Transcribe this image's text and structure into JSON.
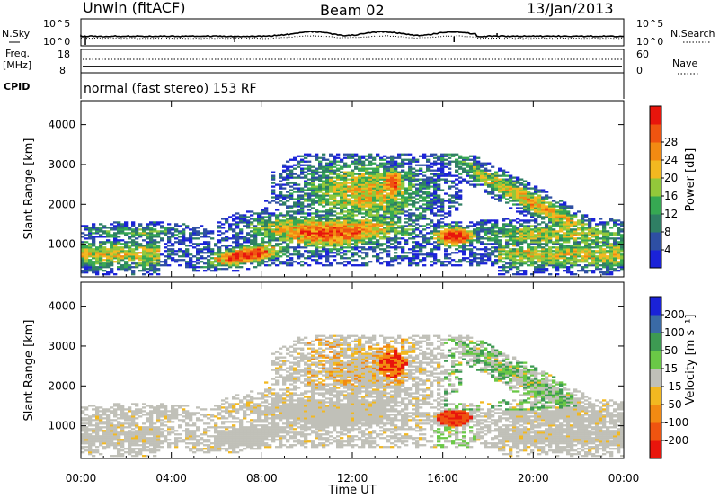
{
  "header": {
    "radar": "Unwin (fitACF)",
    "beam": "Beam 02",
    "date": "13/Jan/2013"
  },
  "noise_panel": {
    "left_label": "N.Sky",
    "left_ticks": [
      "10^5",
      "10^0"
    ],
    "right_label": "N.Search",
    "right_ticks": [
      "10^5",
      "10^0"
    ]
  },
  "freq_panel": {
    "left_label_1": "Freq.",
    "left_label_2": "[MHz]",
    "left_ticks": [
      "18",
      "8"
    ],
    "right_label": "Nave",
    "right_ticks": [
      "60",
      "0"
    ],
    "cpid_label": "CPID",
    "cpid_text": "normal (fast stereo) 153 RF"
  },
  "colors": {
    "power_scale": [
      "#1a22d8",
      "#2e4fa3",
      "#2f7f64",
      "#36a852",
      "#93c83a",
      "#f2b820",
      "#f28a12",
      "#ef5410",
      "#e8150c"
    ],
    "velocity_scale": [
      "#e8150c",
      "#ef5410",
      "#f28a12",
      "#f2b820",
      "#c0c0b8",
      "#6ac846",
      "#3d9a52",
      "#3a6aa6",
      "#1a22d8"
    ]
  },
  "chart_data": [
    {
      "type": "heatmap",
      "name": "power",
      "ylabel": "Slant Range [km]",
      "xlabel": "",
      "x_ticks": [
        "00:00",
        "04:00",
        "08:00",
        "12:00",
        "16:00",
        "20:00",
        "00:00"
      ],
      "xlim_hours": [
        0,
        24
      ],
      "y_ticks": [
        1000,
        2000,
        3000,
        4000
      ],
      "ylim": [
        180,
        4600
      ],
      "colorbar_label": "Power [dB]",
      "colorbar_ticks": [
        4,
        8,
        12,
        16,
        20,
        24,
        28
      ],
      "colorbar_range": [
        0,
        32
      ]
    },
    {
      "type": "heatmap",
      "name": "velocity",
      "ylabel": "Slant Range [km]",
      "xlabel": "Time UT",
      "x_ticks": [
        "00:00",
        "04:00",
        "08:00",
        "12:00",
        "16:00",
        "20:00",
        "00:00"
      ],
      "xlim_hours": [
        0,
        24
      ],
      "y_ticks": [
        1000,
        2000,
        3000,
        4000
      ],
      "ylim": [
        180,
        4600
      ],
      "colorbar_label": "Velocity [m s⁻¹]",
      "colorbar_ticks": [
        -200,
        -100,
        -50,
        -15,
        15,
        50,
        100,
        200
      ]
    }
  ]
}
